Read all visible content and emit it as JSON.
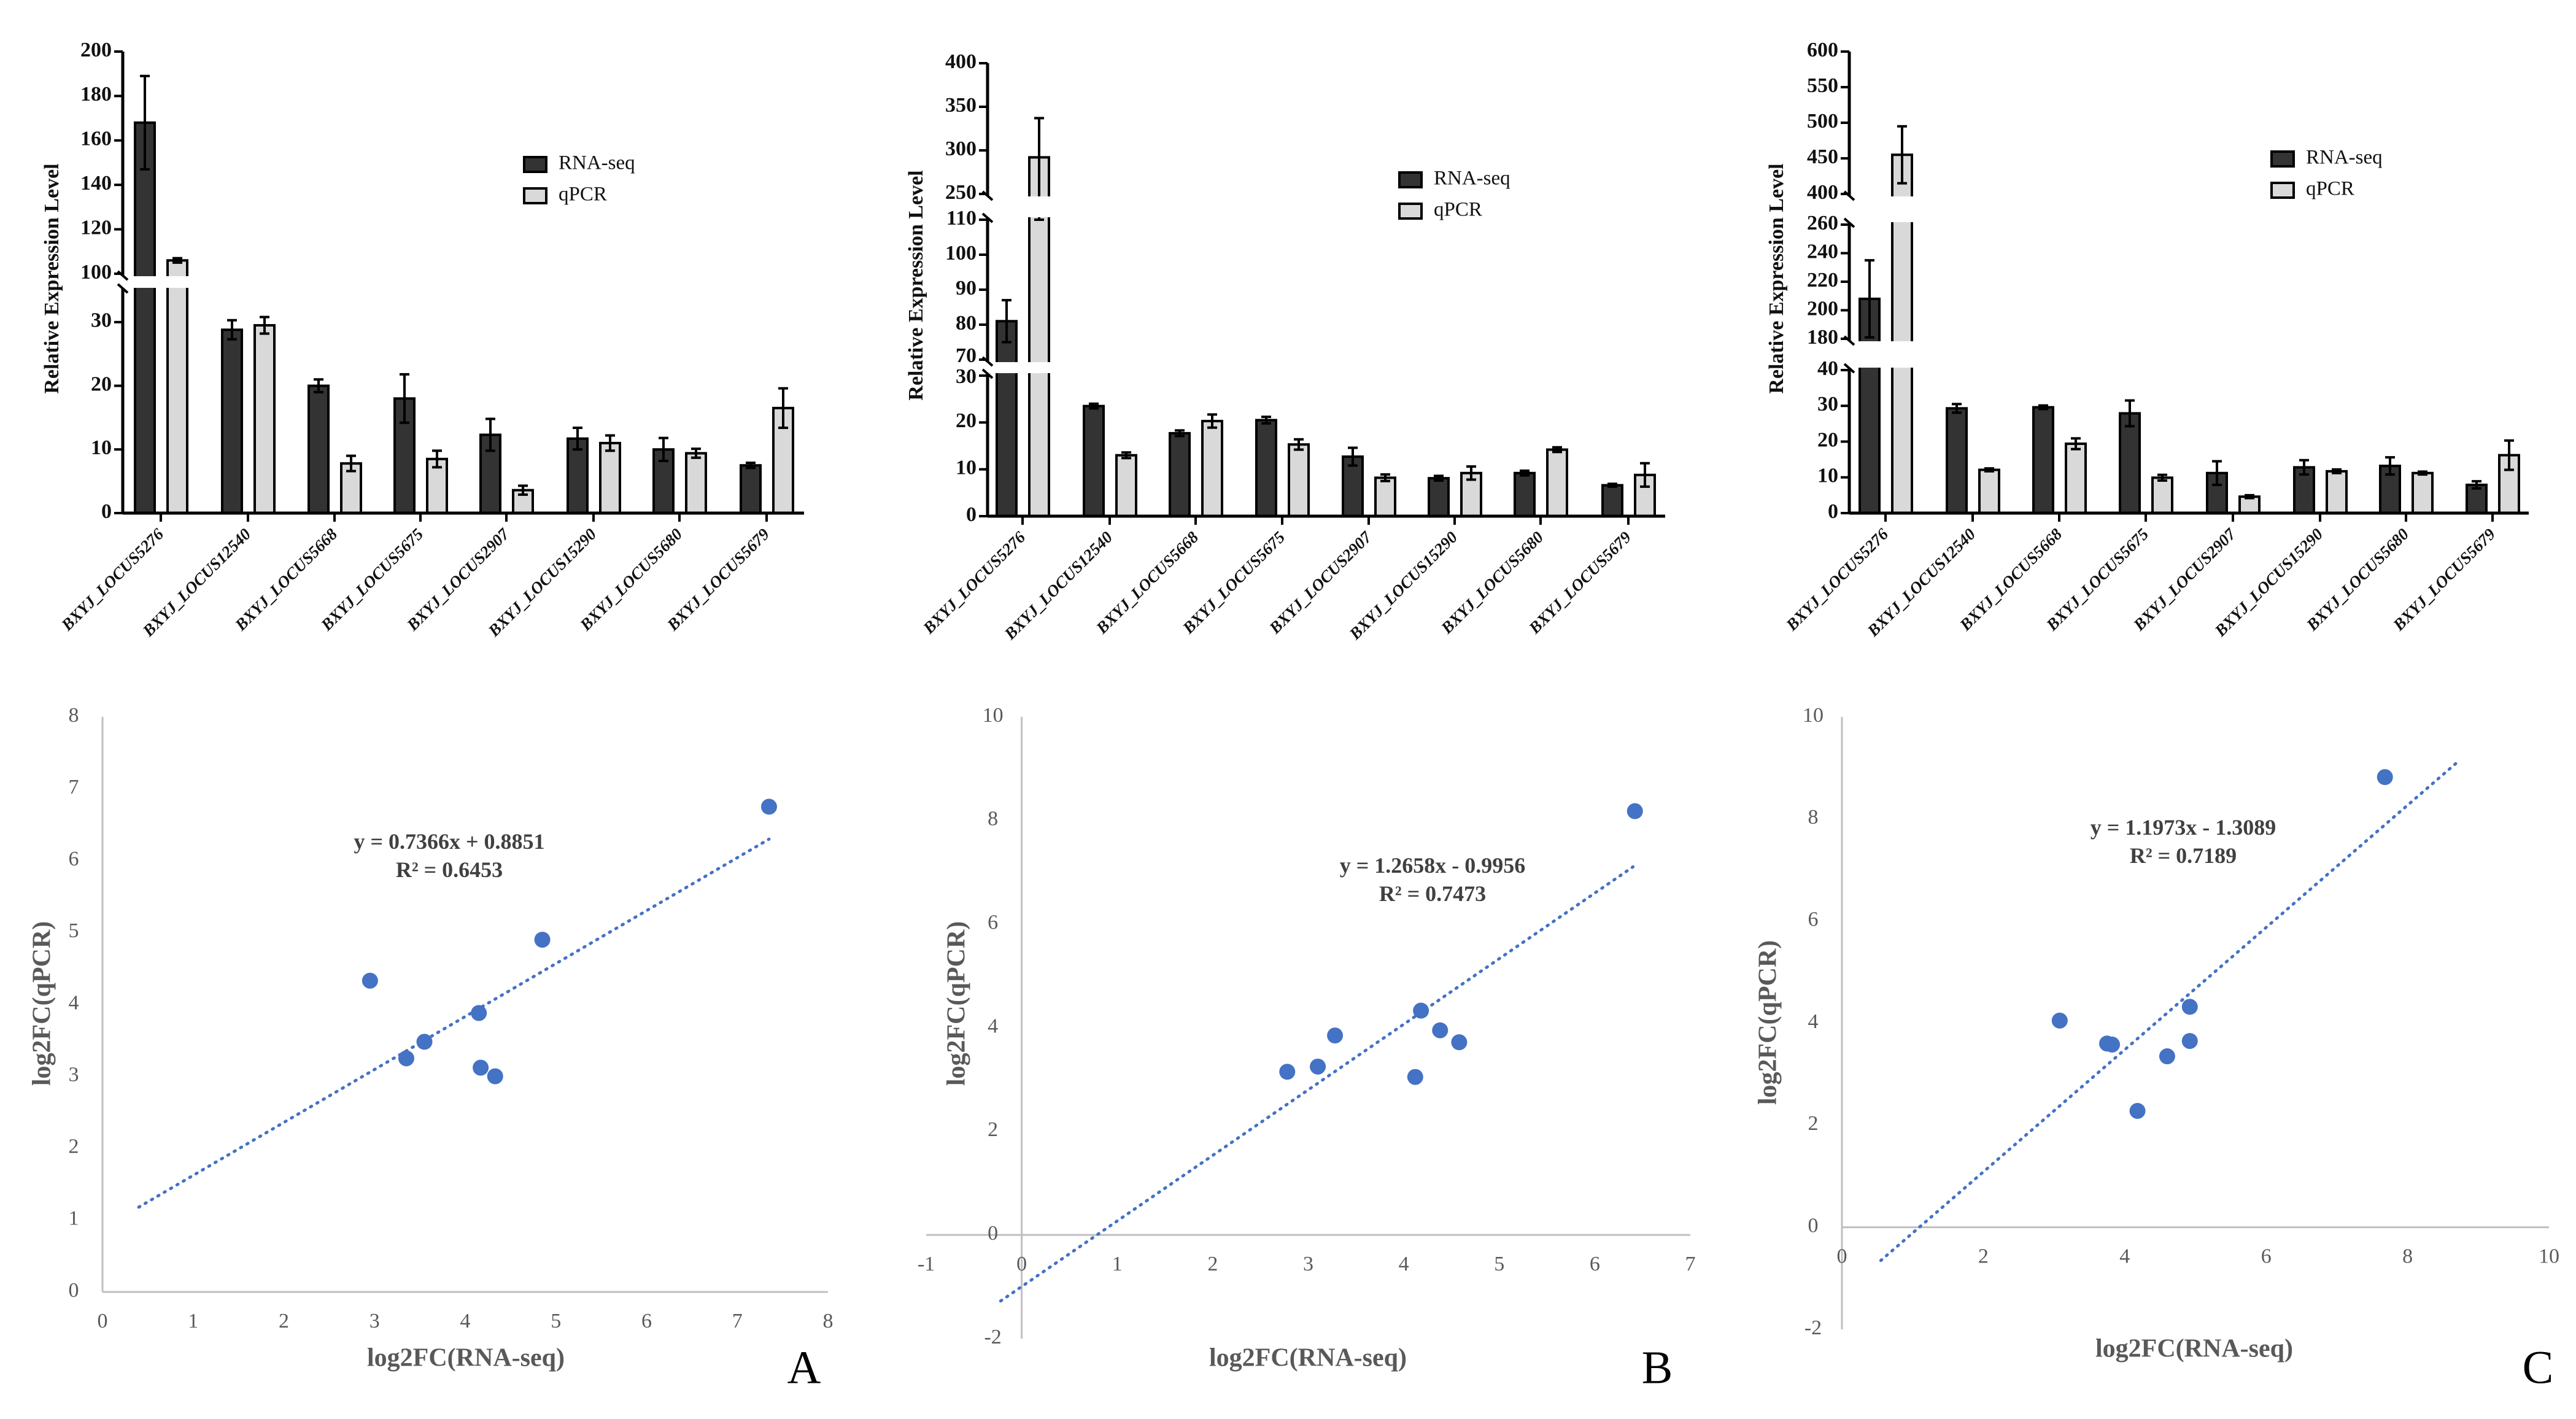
{
  "colors": {
    "rna_seq": "#333333",
    "qpcr": "#d9d9d9",
    "scatter": "#4472c4",
    "axis": "#bfbfbf"
  },
  "chart_data": [
    {
      "type": "bar",
      "panel": "A",
      "ylabel": "Relative Expression Level",
      "categories": [
        "BXYJ_LOCUS5276",
        "BXYJ_LOCUS12540",
        "BXYJ_LOCUS5668",
        "BXYJ_LOCUS5675",
        "BXYJ_LOCUS2907",
        "BXYJ_LOCUS15290",
        "BXYJ_LOCUS5680",
        "BXYJ_LOCUS5679"
      ],
      "series": [
        {
          "name": "RNA-seq",
          "values": [
            168,
            28.8,
            20,
            18,
            12.3,
            11.7,
            10,
            7.5
          ],
          "errors": [
            21,
            1.5,
            1,
            3.8,
            2.5,
            1.7,
            1.8,
            0.4
          ]
        },
        {
          "name": "qPCR",
          "values": [
            106,
            29.5,
            7.8,
            8.5,
            3.6,
            11,
            9.4,
            16.5
          ],
          "errors": [
            1,
            1.3,
            1.2,
            1.3,
            0.7,
            1.2,
            0.7,
            3.1
          ]
        }
      ],
      "y_segments": [
        {
          "range": [
            0,
            35
          ],
          "ticks": [
            0,
            10,
            20,
            30
          ]
        },
        {
          "range": [
            100,
            200
          ],
          "ticks": [
            100,
            120,
            140,
            160,
            180,
            200
          ]
        }
      ],
      "legend": "top-right"
    },
    {
      "type": "scatter",
      "panel": "A",
      "xlabel": "log2FC(RNA-seq)",
      "ylabel": "log2FC(qPCR)",
      "x": [
        2.95,
        3.35,
        3.55,
        4.15,
        4.17,
        4.33,
        4.85,
        7.35
      ],
      "y": [
        4.33,
        3.25,
        3.48,
        3.88,
        3.12,
        3.0,
        4.9,
        6.75
      ],
      "xlim": [
        0,
        8
      ],
      "ylim": [
        0,
        8
      ],
      "xticks": [
        0,
        1,
        2,
        3,
        4,
        5,
        6,
        7,
        8
      ],
      "yticks": [
        0,
        1,
        2,
        3,
        4,
        5,
        6,
        7,
        8
      ],
      "trendline": {
        "slope": 0.7366,
        "intercept": 0.8851,
        "x_range": [
          0.4,
          7.35
        ],
        "equation": "y = 0.7366x + 0.8851",
        "r2": "R² = 0.6453"
      },
      "panel_label": "A"
    },
    {
      "type": "bar",
      "panel": "B",
      "ylabel": "Relative Expression Level",
      "categories": [
        "BXYJ_LOCUS5276",
        "BXYJ_LOCUS12540",
        "BXYJ_LOCUS5668",
        "BXYJ_LOCUS5675",
        "BXYJ_LOCUS2907",
        "BXYJ_LOCUS15290",
        "BXYJ_LOCUS5680",
        "BXYJ_LOCUS5679"
      ],
      "series": [
        {
          "name": "RNA-seq",
          "values": [
            81,
            23.5,
            17.7,
            20.5,
            12.7,
            8.1,
            9.2,
            6.6
          ],
          "errors": [
            6,
            0.5,
            0.6,
            0.7,
            1.9,
            0.5,
            0.5,
            0.3
          ]
        },
        {
          "name": "qPCR",
          "values": [
            292,
            13,
            20.3,
            15.3,
            8.2,
            9.2,
            14.2,
            8.8
          ],
          "errors": [
            45,
            0.6,
            1.4,
            1.1,
            0.7,
            1.4,
            0.5,
            2.5
          ]
        }
      ],
      "y_segments": [
        {
          "range": [
            0,
            30
          ],
          "ticks": [
            0,
            10,
            20,
            30
          ]
        },
        {
          "range": [
            70,
            110
          ],
          "ticks": [
            70,
            80,
            90,
            100,
            110
          ]
        },
        {
          "range": [
            250,
            400
          ],
          "ticks": [
            250,
            300,
            350,
            400
          ]
        }
      ],
      "legend": "top-right"
    },
    {
      "type": "scatter",
      "panel": "B",
      "xlabel": "log2FC(RNA-seq)",
      "ylabel": "log2FC(qPCR)",
      "x": [
        2.78,
        3.1,
        3.28,
        4.12,
        4.18,
        4.38,
        4.58,
        6.42
      ],
      "y": [
        3.15,
        3.25,
        3.85,
        3.05,
        4.33,
        3.95,
        3.72,
        8.18
      ],
      "xlim": [
        -1,
        7
      ],
      "ylim": [
        -2,
        10
      ],
      "xticks": [
        -1,
        0,
        1,
        2,
        3,
        4,
        5,
        6,
        7
      ],
      "yticks": [
        -2,
        0,
        2,
        4,
        6,
        8,
        10
      ],
      "trendline": {
        "slope": 1.2658,
        "intercept": -0.9956,
        "x_range": [
          -0.22,
          6.4
        ],
        "equation": "y = 1.2658x - 0.9956",
        "r2": "R² = 0.7473"
      },
      "panel_label": "B"
    },
    {
      "type": "bar",
      "panel": "C",
      "ylabel": "Relative Expression Level",
      "categories": [
        "BXYJ_LOCUS5276",
        "BXYJ_LOCUS12540",
        "BXYJ_LOCUS5668",
        "BXYJ_LOCUS5675",
        "BXYJ_LOCUS2907",
        "BXYJ_LOCUS15290",
        "BXYJ_LOCUS5680",
        "BXYJ_LOCUS5679"
      ],
      "series": [
        {
          "name": "RNA-seq",
          "values": [
            208,
            29.3,
            29.6,
            27.9,
            11.2,
            12.8,
            13.2,
            7.9
          ],
          "errors": [
            27,
            1.2,
            0.5,
            3.6,
            3.3,
            2,
            2.4,
            1
          ]
        },
        {
          "name": "qPCR",
          "values": [
            455,
            12.1,
            19.4,
            9.9,
            4.6,
            11.7,
            11.2,
            16.2
          ],
          "errors": [
            40,
            0.4,
            1.5,
            0.8,
            0.4,
            0.5,
            0.4,
            4.1
          ]
        }
      ],
      "y_segments": [
        {
          "range": [
            0,
            40
          ],
          "ticks": [
            0,
            10,
            20,
            30,
            40
          ]
        },
        {
          "range": [
            180,
            260
          ],
          "ticks": [
            180,
            200,
            220,
            240,
            260
          ]
        },
        {
          "range": [
            400,
            600
          ],
          "ticks": [
            400,
            450,
            500,
            550,
            600
          ]
        }
      ],
      "legend": "top-right"
    },
    {
      "type": "scatter",
      "panel": "C",
      "xlabel": "log2FC(RNA-seq)",
      "ylabel": "log2FC(qPCR)",
      "x": [
        3.08,
        3.75,
        3.82,
        4.18,
        4.6,
        4.92,
        4.92,
        7.68
      ],
      "y": [
        4.05,
        3.6,
        3.58,
        2.28,
        3.35,
        4.32,
        3.65,
        8.82
      ],
      "xlim": [
        0,
        10
      ],
      "ylim": [
        -2,
        10
      ],
      "xticks": [
        0,
        2,
        4,
        6,
        8,
        10
      ],
      "yticks": [
        -2,
        0,
        2,
        4,
        6,
        8,
        10
      ],
      "trendline": {
        "slope": 1.1973,
        "intercept": -1.3089,
        "x_range": [
          0.55,
          8.7
        ],
        "equation": "y = 1.1973x - 1.3089",
        "r2": "R² = 0.7189"
      },
      "panel_label": "C"
    }
  ]
}
